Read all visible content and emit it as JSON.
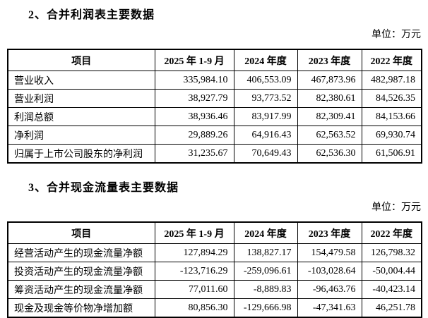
{
  "section2": {
    "heading": "2、合并利润表主要数据",
    "unit_label": "单位：万元",
    "table": {
      "headers": [
        "项目",
        "2025 年 1-9 月",
        "2024 年度",
        "2023 年度",
        "2022 年度"
      ],
      "rows": [
        {
          "label": "营业收入",
          "values": [
            "335,984.10",
            "406,553.09",
            "467,873.96",
            "482,987.18"
          ]
        },
        {
          "label": "营业利润",
          "values": [
            "38,927.79",
            "93,773.52",
            "82,380.61",
            "84,526.35"
          ]
        },
        {
          "label": "利润总额",
          "values": [
            "38,936.46",
            "83,917.99",
            "82,309.41",
            "84,153.66"
          ]
        },
        {
          "label": "净利润",
          "values": [
            "29,889.26",
            "64,916.43",
            "62,563.52",
            "69,930.74"
          ]
        },
        {
          "label": "归属于上市公司股东的净利润",
          "values": [
            "31,235.67",
            "70,649.43",
            "62,536.30",
            "61,506.91"
          ]
        }
      ]
    }
  },
  "section3": {
    "heading": "3、合并现金流量表主要数据",
    "unit_label": "单位：万元",
    "table": {
      "headers": [
        "项目",
        "2025 年 1-9 月",
        "2024 年度",
        "2023 年度",
        "2022 年度"
      ],
      "rows": [
        {
          "label": "经营活动产生的现金流量净额",
          "values": [
            "127,894.29",
            "138,827.17",
            "154,479.58",
            "126,798.32"
          ]
        },
        {
          "label": "投资活动产生的现金流量净额",
          "values": [
            "-123,716.29",
            "-259,096.61",
            "-103,028.64",
            "-50,004.44"
          ]
        },
        {
          "label": "筹资活动产生的现金流量净额",
          "values": [
            "77,011.60",
            "-8,889.83",
            "-96,463.76",
            "-40,423.14"
          ]
        },
        {
          "label": "现金及现金等价物净增加额",
          "values": [
            "80,856.30",
            "-129,666.98",
            "-47,341.63",
            "46,251.78"
          ]
        }
      ]
    }
  }
}
